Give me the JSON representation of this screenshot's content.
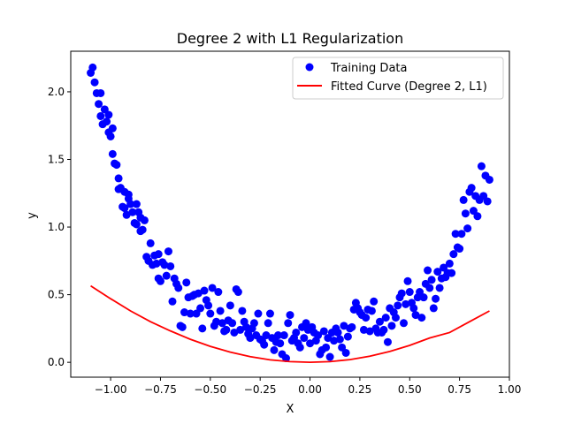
{
  "chart_data": {
    "type": "scatter",
    "title": "Degree 2 with L1 Regularization",
    "xlabel": "X",
    "ylabel": "y",
    "xlim": [
      -1.2,
      1.0
    ],
    "ylim": [
      -0.11,
      2.3
    ],
    "grid": false,
    "legend_placement": "top-right",
    "xticks": [
      -1.0,
      -0.75,
      -0.5,
      -0.25,
      0.0,
      0.25,
      0.5,
      0.75,
      1.0
    ],
    "xtick_labels": [
      "−1.00",
      "−0.75",
      "−0.50",
      "−0.25",
      "0.00",
      "0.25",
      "0.50",
      "0.75",
      "1.00"
    ],
    "yticks": [
      0.0,
      0.5,
      1.0,
      1.5,
      2.0
    ],
    "ytick_labels": [
      "0.0",
      "0.5",
      "1.0",
      "1.5",
      "2.0"
    ],
    "series": [
      {
        "name": "Training Data",
        "kind": "scatter",
        "color": "#0000ff",
        "points": [
          [
            -1.1,
            2.14
          ],
          [
            -1.09,
            2.18
          ],
          [
            -1.08,
            2.07
          ],
          [
            -1.07,
            1.99
          ],
          [
            -1.06,
            1.91
          ],
          [
            -1.05,
            1.99
          ],
          [
            -1.05,
            1.82
          ],
          [
            -1.04,
            1.76
          ],
          [
            -1.03,
            1.87
          ],
          [
            -1.02,
            1.78
          ],
          [
            -1.01,
            1.83
          ],
          [
            -1.01,
            1.7
          ],
          [
            -1.0,
            1.67
          ],
          [
            -0.99,
            1.54
          ],
          [
            -0.99,
            1.73
          ],
          [
            -0.98,
            1.47
          ],
          [
            -0.97,
            1.46
          ],
          [
            -0.96,
            1.36
          ],
          [
            -0.96,
            1.28
          ],
          [
            -0.95,
            1.29
          ],
          [
            -0.94,
            1.15
          ],
          [
            -0.93,
            1.26
          ],
          [
            -0.93,
            1.14
          ],
          [
            -0.92,
            1.09
          ],
          [
            -0.91,
            1.24
          ],
          [
            -0.91,
            1.21
          ],
          [
            -0.9,
            1.17
          ],
          [
            -0.89,
            1.11
          ],
          [
            -0.88,
            1.03
          ],
          [
            -0.87,
            1.17
          ],
          [
            -0.87,
            1.02
          ],
          [
            -0.86,
            1.11
          ],
          [
            -0.85,
            1.07
          ],
          [
            -0.85,
            0.97
          ],
          [
            -0.84,
            0.98
          ],
          [
            -0.83,
            1.05
          ],
          [
            -0.82,
            0.78
          ],
          [
            -0.81,
            0.75
          ],
          [
            -0.8,
            0.88
          ],
          [
            -0.79,
            0.72
          ],
          [
            -0.78,
            0.79
          ],
          [
            -0.77,
            0.73
          ],
          [
            -0.76,
            0.62
          ],
          [
            -0.76,
            0.8
          ],
          [
            -0.75,
            0.6
          ],
          [
            -0.74,
            0.74
          ],
          [
            -0.73,
            0.72
          ],
          [
            -0.72,
            0.64
          ],
          [
            -0.71,
            0.82
          ],
          [
            -0.7,
            0.71
          ],
          [
            -0.69,
            0.45
          ],
          [
            -0.68,
            0.62
          ],
          [
            -0.67,
            0.58
          ],
          [
            -0.66,
            0.55
          ],
          [
            -0.65,
            0.27
          ],
          [
            -0.64,
            0.26
          ],
          [
            -0.63,
            0.37
          ],
          [
            -0.62,
            0.59
          ],
          [
            -0.61,
            0.48
          ],
          [
            -0.6,
            0.36
          ],
          [
            -0.59,
            0.49
          ],
          [
            -0.58,
            0.5
          ],
          [
            -0.57,
            0.36
          ],
          [
            -0.56,
            0.51
          ],
          [
            -0.55,
            0.4
          ],
          [
            -0.54,
            0.25
          ],
          [
            -0.53,
            0.53
          ],
          [
            -0.52,
            0.46
          ],
          [
            -0.51,
            0.42
          ],
          [
            -0.5,
            0.36
          ],
          [
            -0.49,
            0.55
          ],
          [
            -0.48,
            0.27
          ],
          [
            -0.47,
            0.3
          ],
          [
            -0.46,
            0.52
          ],
          [
            -0.45,
            0.38
          ],
          [
            -0.44,
            0.29
          ],
          [
            -0.43,
            0.23
          ],
          [
            -0.42,
            0.24
          ],
          [
            -0.41,
            0.31
          ],
          [
            -0.4,
            0.42
          ],
          [
            -0.39,
            0.29
          ],
          [
            -0.38,
            0.22
          ],
          [
            -0.37,
            0.54
          ],
          [
            -0.36,
            0.52
          ],
          [
            -0.35,
            0.24
          ],
          [
            -0.34,
            0.38
          ],
          [
            -0.33,
            0.3
          ],
          [
            -0.32,
            0.26
          ],
          [
            -0.31,
            0.21
          ],
          [
            -0.3,
            0.18
          ],
          [
            -0.29,
            0.25
          ],
          [
            -0.28,
            0.29
          ],
          [
            -0.27,
            0.2
          ],
          [
            -0.26,
            0.36
          ],
          [
            -0.25,
            0.17
          ],
          [
            -0.24,
            0.16
          ],
          [
            -0.23,
            0.13
          ],
          [
            -0.22,
            0.2
          ],
          [
            -0.21,
            0.29
          ],
          [
            -0.2,
            0.36
          ],
          [
            -0.19,
            0.18
          ],
          [
            -0.18,
            0.09
          ],
          [
            -0.17,
            0.15
          ],
          [
            -0.16,
            0.2
          ],
          [
            -0.15,
            0.14
          ],
          [
            -0.14,
            0.06
          ],
          [
            -0.13,
            0.2
          ],
          [
            -0.12,
            0.03
          ],
          [
            -0.11,
            0.29
          ],
          [
            -0.1,
            0.35
          ],
          [
            -0.09,
            0.16
          ],
          [
            -0.08,
            0.18
          ],
          [
            -0.07,
            0.22
          ],
          [
            -0.06,
            0.14
          ],
          [
            -0.05,
            0.11
          ],
          [
            -0.04,
            0.26
          ],
          [
            -0.03,
            0.18
          ],
          [
            -0.02,
            0.29
          ],
          [
            -0.01,
            0.24
          ],
          [
            0.0,
            0.14
          ],
          [
            0.01,
            0.26
          ],
          [
            0.02,
            0.22
          ],
          [
            0.03,
            0.16
          ],
          [
            0.04,
            0.2
          ],
          [
            0.05,
            0.06
          ],
          [
            0.06,
            0.09
          ],
          [
            0.07,
            0.23
          ],
          [
            0.08,
            0.11
          ],
          [
            0.09,
            0.18
          ],
          [
            0.1,
            0.04
          ],
          [
            0.11,
            0.22
          ],
          [
            0.12,
            0.16
          ],
          [
            0.13,
            0.25
          ],
          [
            0.14,
            0.22
          ],
          [
            0.15,
            0.17
          ],
          [
            0.16,
            0.11
          ],
          [
            0.17,
            0.27
          ],
          [
            0.18,
            0.07
          ],
          [
            0.19,
            0.19
          ],
          [
            0.2,
            0.25
          ],
          [
            0.21,
            0.26
          ],
          [
            0.22,
            0.39
          ],
          [
            0.23,
            0.44
          ],
          [
            0.24,
            0.4
          ],
          [
            0.25,
            0.37
          ],
          [
            0.26,
            0.35
          ],
          [
            0.27,
            0.24
          ],
          [
            0.28,
            0.33
          ],
          [
            0.29,
            0.39
          ],
          [
            0.3,
            0.23
          ],
          [
            0.31,
            0.38
          ],
          [
            0.32,
            0.45
          ],
          [
            0.33,
            0.25
          ],
          [
            0.34,
            0.22
          ],
          [
            0.35,
            0.3
          ],
          [
            0.36,
            0.22
          ],
          [
            0.37,
            0.24
          ],
          [
            0.38,
            0.33
          ],
          [
            0.39,
            0.15
          ],
          [
            0.4,
            0.4
          ],
          [
            0.41,
            0.27
          ],
          [
            0.42,
            0.37
          ],
          [
            0.43,
            0.33
          ],
          [
            0.44,
            0.42
          ],
          [
            0.45,
            0.48
          ],
          [
            0.46,
            0.51
          ],
          [
            0.47,
            0.29
          ],
          [
            0.48,
            0.43
          ],
          [
            0.49,
            0.6
          ],
          [
            0.5,
            0.52
          ],
          [
            0.51,
            0.44
          ],
          [
            0.52,
            0.4
          ],
          [
            0.53,
            0.35
          ],
          [
            0.54,
            0.48
          ],
          [
            0.55,
            0.52
          ],
          [
            0.56,
            0.33
          ],
          [
            0.57,
            0.48
          ],
          [
            0.58,
            0.58
          ],
          [
            0.59,
            0.68
          ],
          [
            0.6,
            0.55
          ],
          [
            0.61,
            0.61
          ],
          [
            0.62,
            0.4
          ],
          [
            0.63,
            0.47
          ],
          [
            0.64,
            0.67
          ],
          [
            0.65,
            0.55
          ],
          [
            0.66,
            0.62
          ],
          [
            0.67,
            0.7
          ],
          [
            0.68,
            0.63
          ],
          [
            0.69,
            0.66
          ],
          [
            0.7,
            0.73
          ],
          [
            0.71,
            0.66
          ],
          [
            0.72,
            0.8
          ],
          [
            0.73,
            0.95
          ],
          [
            0.74,
            0.85
          ],
          [
            0.75,
            0.84
          ],
          [
            0.76,
            0.95
          ],
          [
            0.77,
            1.2
          ],
          [
            0.78,
            1.1
          ],
          [
            0.79,
            0.99
          ],
          [
            0.8,
            1.26
          ],
          [
            0.81,
            1.29
          ],
          [
            0.82,
            1.12
          ],
          [
            0.83,
            1.23
          ],
          [
            0.84,
            1.08
          ],
          [
            0.85,
            1.2
          ],
          [
            0.86,
            1.45
          ],
          [
            0.87,
            1.23
          ],
          [
            0.88,
            1.38
          ],
          [
            0.89,
            1.19
          ],
          [
            0.9,
            1.35
          ]
        ]
      },
      {
        "name": "Fitted Curve (Degree 2, L1)",
        "kind": "line",
        "color": "#ff0000",
        "x": [
          -1.1,
          -1.0,
          -0.9,
          -0.8,
          -0.7,
          -0.6,
          -0.5,
          -0.4,
          -0.3,
          -0.2,
          -0.1,
          0.0,
          0.1,
          0.2,
          0.3,
          0.4,
          0.5,
          0.6,
          0.7,
          0.8,
          0.9
        ],
        "y": [
          0.565,
          0.47,
          0.38,
          0.3,
          0.232,
          0.17,
          0.118,
          0.075,
          0.042,
          0.018,
          0.005,
          0.0,
          0.005,
          0.02,
          0.045,
          0.08,
          0.125,
          0.18,
          0.22,
          0.3,
          0.38
        ]
      }
    ]
  }
}
